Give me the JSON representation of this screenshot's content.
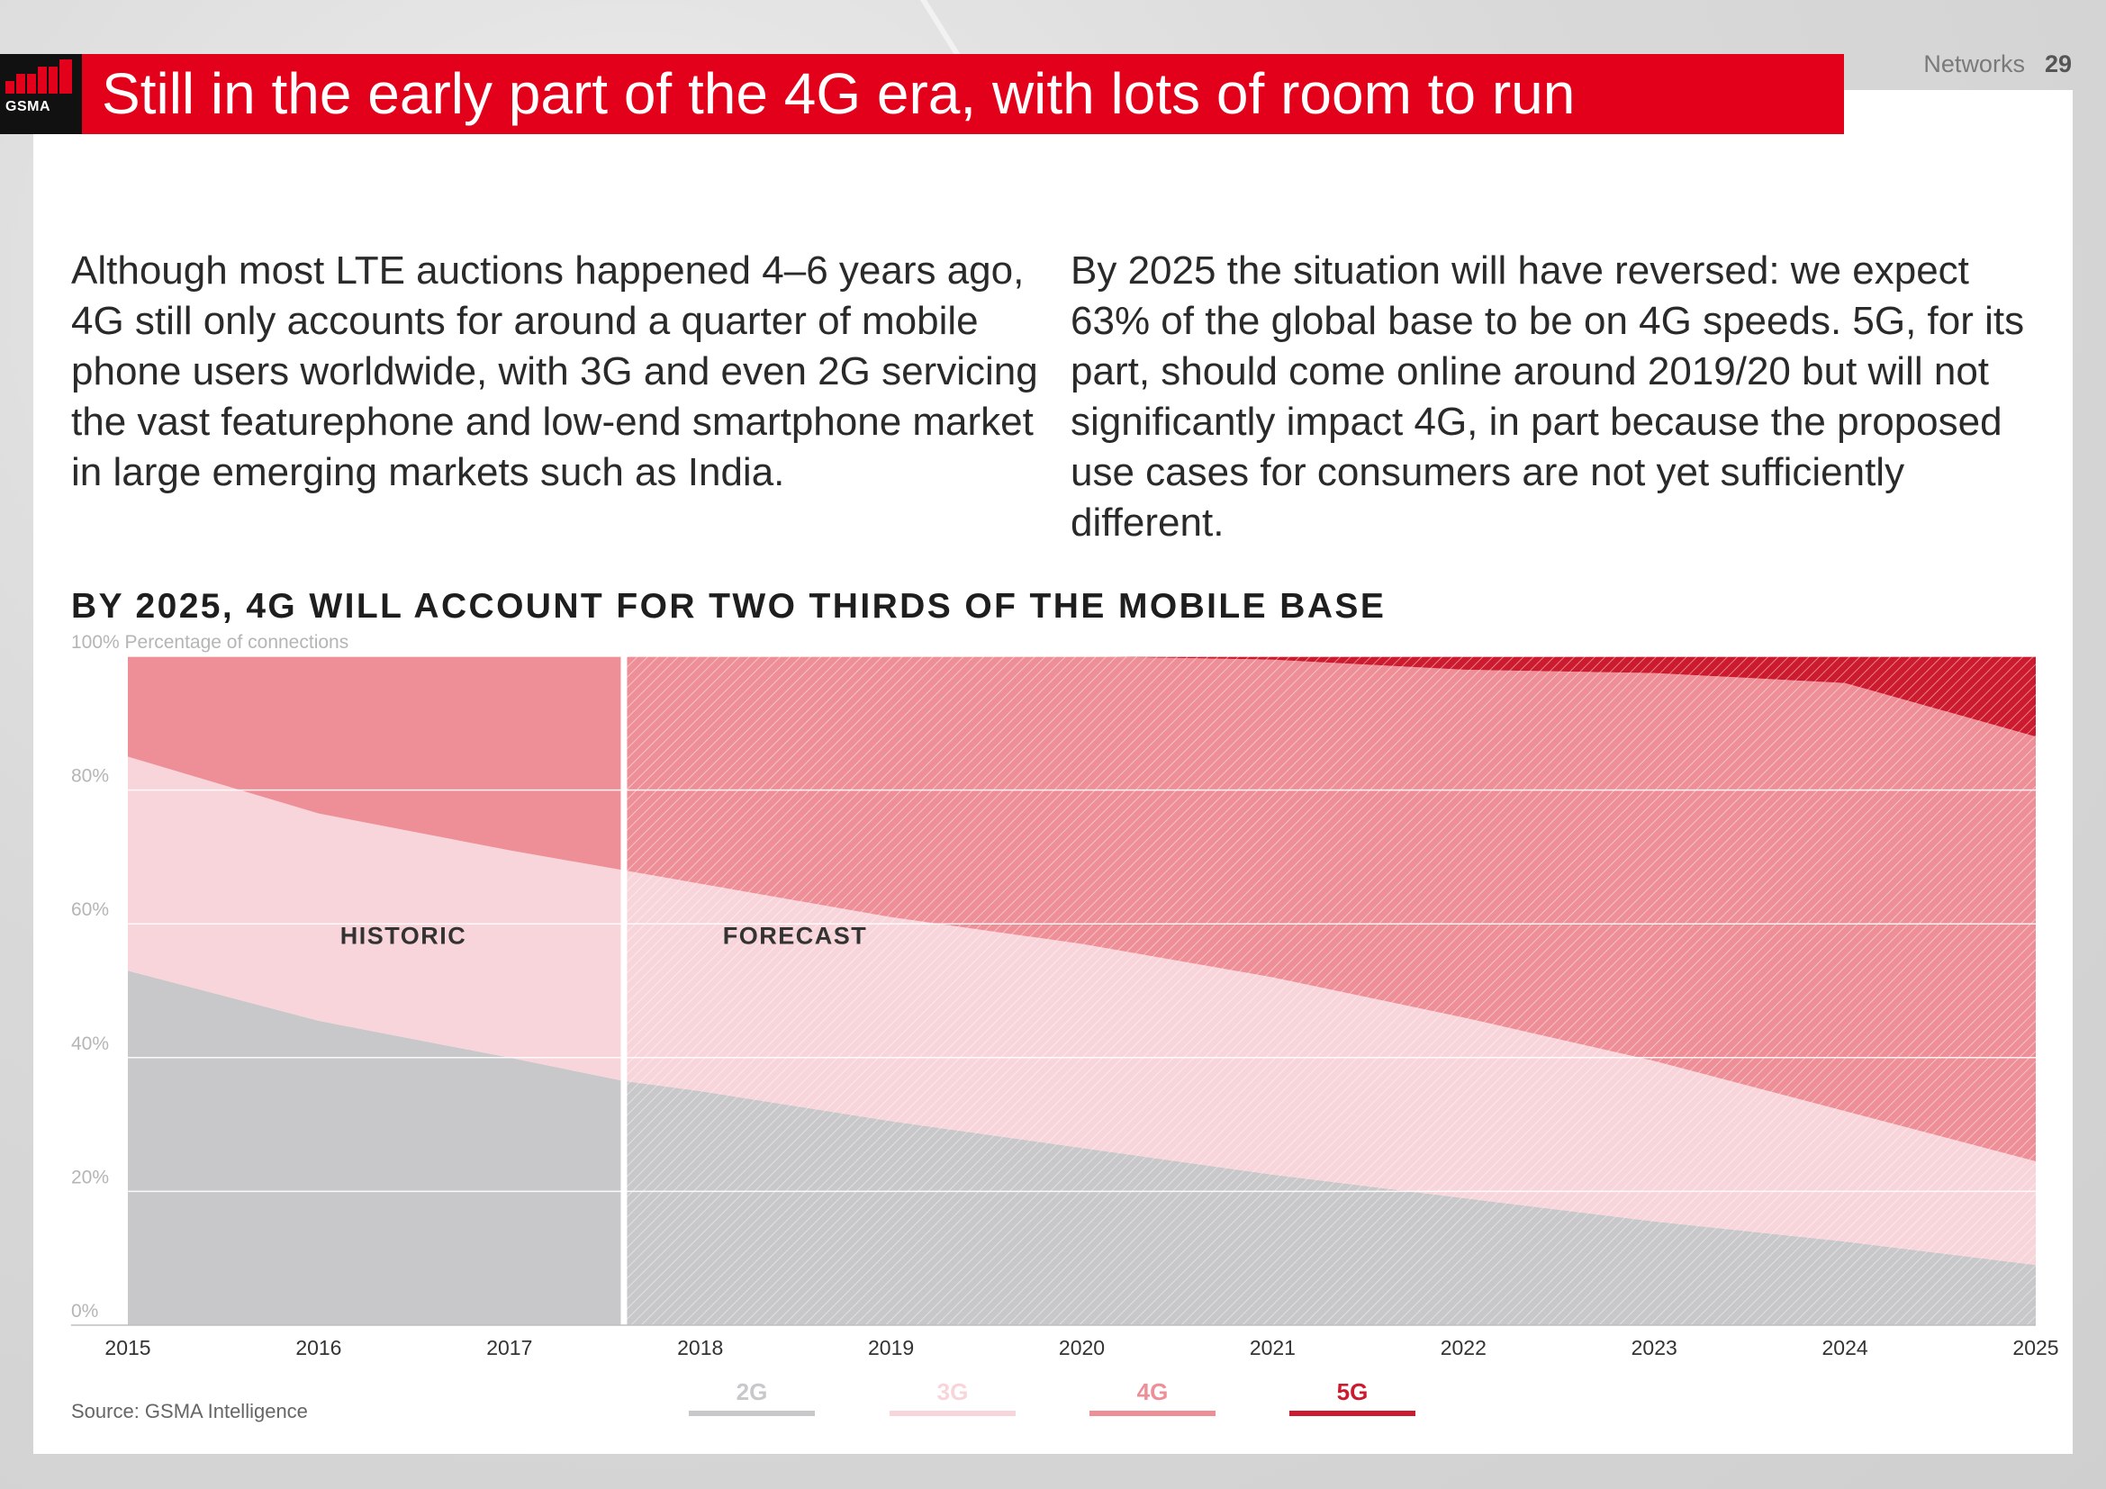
{
  "header": {
    "logo_text": "GSMA",
    "title": "Still in the early part of the 4G era, with lots of room to run",
    "section": "Networks",
    "page_number": "29"
  },
  "paragraphs": {
    "left": "Although most LTE auctions happened 4–6 years ago, 4G still only accounts for around a quarter of mobile phone users worldwide, with 3G and even 2G servicing the vast featurephone and low-end smartphone market in large emerging markets such as India.",
    "right": "By 2025 the situation will have reversed: we expect 63% of the global base to be on 4G speeds. 5G, for its part, should come online around 2019/20 but will not significantly impact 4G, in part because the proposed use cases for consumers are not yet sufficiently different."
  },
  "source": "Source: GSMA Intelligence",
  "colors": {
    "brand_red": "#e2001a",
    "2G": "#c8c8ca",
    "3G": "#f8d5da",
    "4G": "#ee8f98",
    "5G": "#cc1a2e"
  },
  "chart_data": {
    "type": "area",
    "stacked": true,
    "title": "BY 2025, 4G WILL ACCOUNT FOR TWO THIRDS OF THE MOBILE BASE",
    "ylabel": "Percentage of connections",
    "ylim": [
      0,
      100
    ],
    "yticks": [
      "0%",
      "20%",
      "40%",
      "60%",
      "80%",
      "100%"
    ],
    "x": [
      2015,
      2016,
      2017,
      2017.6,
      2018,
      2019,
      2020,
      2021,
      2022,
      2023,
      2024,
      2025
    ],
    "xticks": [
      "2015",
      "2016",
      "2017",
      "2018",
      "2019",
      "2020",
      "2021",
      "2022",
      "2023",
      "2024",
      "2025"
    ],
    "historic_end": 2017.6,
    "annotations": [
      "HISTORIC",
      "FORECAST"
    ],
    "series": [
      {
        "name": "2G",
        "values": [
          53,
          45.5,
          40,
          36.5,
          35,
          30.5,
          26.5,
          22.5,
          19,
          15.5,
          12.5,
          9
        ]
      },
      {
        "name": "3G",
        "values": [
          32,
          31,
          31,
          31.5,
          31,
          30.5,
          30.5,
          29.5,
          27,
          24,
          19.5,
          15.5
        ]
      },
      {
        "name": "4G",
        "values": [
          15,
          23.5,
          29,
          32,
          34,
          39,
          43,
          47.5,
          52,
          58,
          64,
          63.5
        ]
      },
      {
        "name": "5G",
        "values": [
          0,
          0,
          0,
          0,
          0,
          0,
          0,
          0.5,
          2,
          2.5,
          4,
          12
        ]
      }
    ]
  }
}
